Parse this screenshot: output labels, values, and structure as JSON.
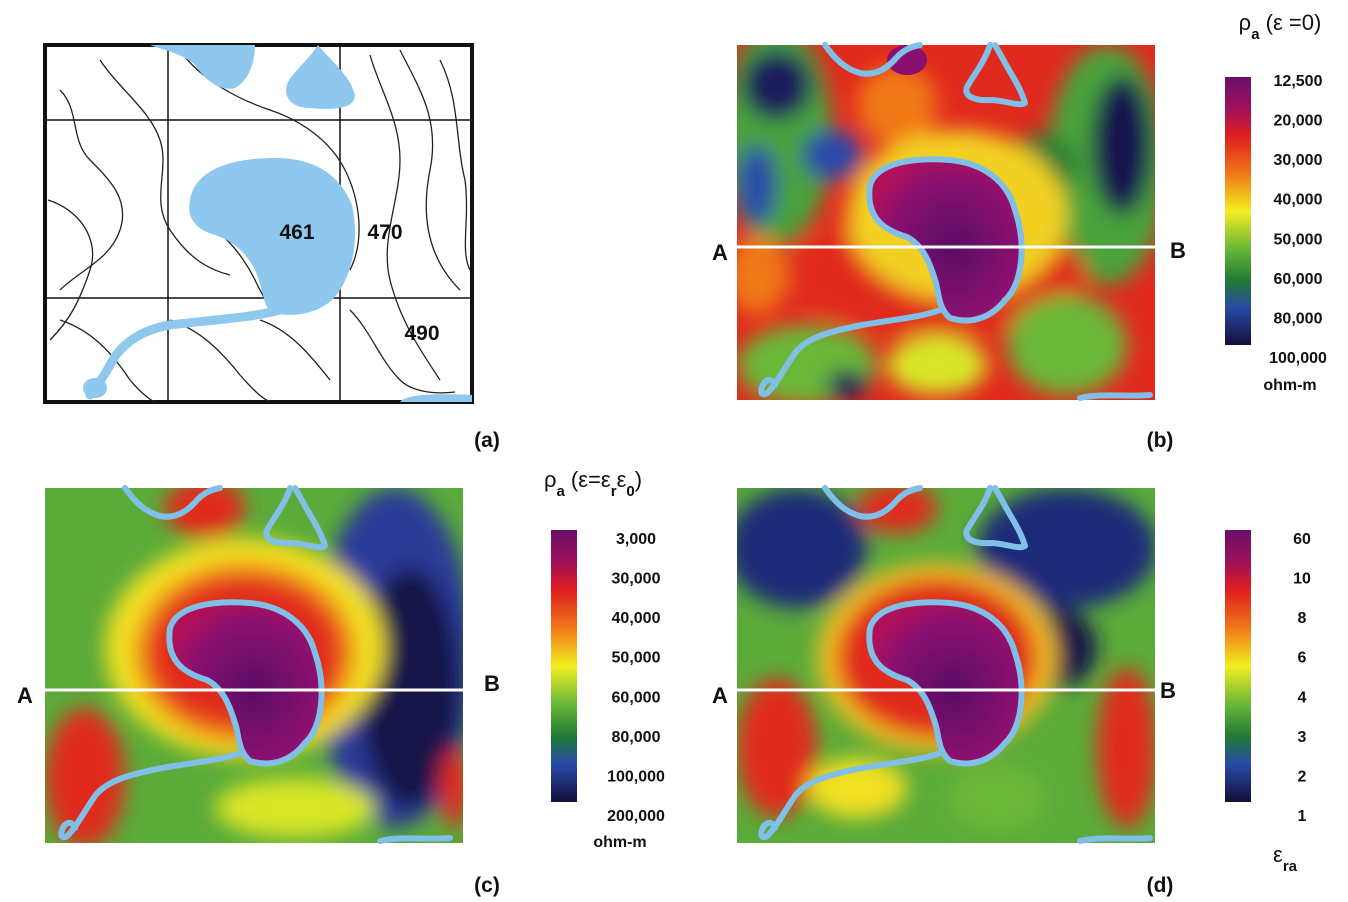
{
  "panels": [
    {
      "label": "(a)",
      "contour_labels": [
        "461",
        "470",
        "490"
      ]
    },
    {
      "label": "(b)",
      "profile_start": "A",
      "profile_end": "B"
    },
    {
      "label": "(c)",
      "profile_start": "A",
      "profile_end": "B"
    },
    {
      "label": "(d)",
      "profile_start": "A",
      "profile_end": "B"
    }
  ],
  "legends": [
    {
      "title_parts": [
        {
          "text": "ρ"
        },
        {
          "sub": "a"
        },
        {
          "text": " (ε =0)"
        }
      ],
      "ticks": [
        "12,500",
        "20,000",
        "30,000",
        "40,000",
        "50,000",
        "60,000",
        "80,000",
        "100,000"
      ],
      "unit": "ohm-m"
    },
    {
      "title_parts": [
        {
          "text": "ρ"
        },
        {
          "sub": "a"
        },
        {
          "text": " (ε=ε"
        },
        {
          "sub": "r"
        },
        {
          "text": "ε"
        },
        {
          "sub": "0"
        },
        {
          "text": ")"
        }
      ],
      "ticks": [
        "3,000",
        "30,000",
        "40,000",
        "50,000",
        "60,000",
        "80,000",
        "100,000",
        "200,000"
      ],
      "unit": "ohm-m"
    },
    {
      "title_parts": [
        {
          "text": "ε"
        },
        {
          "sub": "ra"
        }
      ],
      "ticks": [
        "60",
        "10",
        "8",
        "6",
        "4",
        "3",
        "2",
        "1"
      ]
    }
  ]
}
